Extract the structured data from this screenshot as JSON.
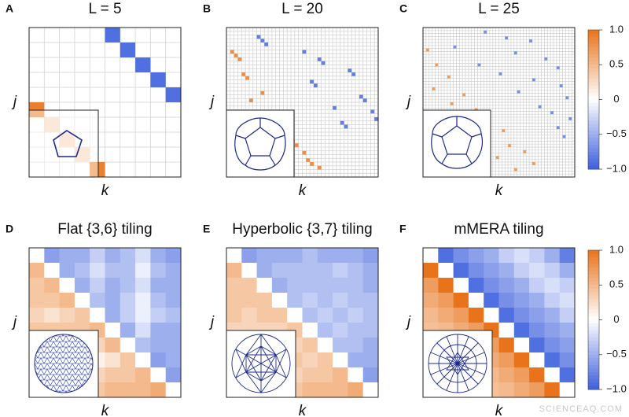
{
  "chart_data": [
    {
      "type": "heatmap",
      "panel_label": "A",
      "title": "L = 5",
      "xlabel": "k",
      "ylabel": "j",
      "grid_size": 10,
      "clim": [
        -1,
        1
      ],
      "colors": [
        "#3d5fdc",
        "#ffffff",
        "#e8731a"
      ],
      "cells": [
        [
          0,
          5,
          -0.9
        ],
        [
          1,
          6,
          -0.9
        ],
        [
          2,
          7,
          -0.9
        ],
        [
          3,
          8,
          -0.9
        ],
        [
          4,
          9,
          -0.9
        ],
        [
          5,
          0,
          0.9
        ],
        [
          6,
          1,
          0.3
        ],
        [
          7,
          2,
          0.3
        ],
        [
          8,
          3,
          0.3
        ],
        [
          9,
          4,
          0.9
        ]
      ]
    },
    {
      "type": "heatmap",
      "panel_label": "B",
      "title": "L = 20",
      "xlabel": "k",
      "ylabel": "j",
      "grid_size": 40,
      "clim": [
        -1,
        1
      ],
      "colors": [
        "#3d5fdc",
        "#ffffff",
        "#e8731a"
      ],
      "cells": [
        [
          2,
          8,
          -0.8
        ],
        [
          3,
          9,
          -0.8
        ],
        [
          4,
          10,
          -0.8
        ],
        [
          6,
          20,
          -0.8
        ],
        [
          8,
          24,
          -0.8
        ],
        [
          9,
          25,
          -0.8
        ],
        [
          11,
          32,
          -0.8
        ],
        [
          12,
          33,
          -0.8
        ],
        [
          14,
          22,
          -0.8
        ],
        [
          15,
          23,
          -0.8
        ],
        [
          18,
          35,
          -0.8
        ],
        [
          19,
          36,
          -0.8
        ],
        [
          21,
          28,
          -0.8
        ],
        [
          22,
          38,
          -0.8
        ],
        [
          24,
          39,
          -0.8
        ],
        [
          25,
          30,
          -0.8
        ],
        [
          26,
          31,
          -0.8
        ],
        [
          6,
          1,
          0.8
        ],
        [
          7,
          2,
          0.8
        ],
        [
          8,
          3,
          0.8
        ],
        [
          12,
          4,
          0.8
        ],
        [
          13,
          5,
          0.8
        ],
        [
          17,
          9,
          0.8
        ],
        [
          19,
          6,
          0.8
        ],
        [
          23,
          10,
          0.8
        ],
        [
          24,
          11,
          0.8
        ],
        [
          27,
          15,
          0.8
        ],
        [
          28,
          14,
          0.8
        ],
        [
          30,
          17,
          0.8
        ],
        [
          31,
          18,
          0.8
        ],
        [
          33,
          20,
          0.8
        ],
        [
          35,
          21,
          0.8
        ],
        [
          36,
          22,
          0.8
        ],
        [
          37,
          24,
          0.8
        ]
      ]
    },
    {
      "type": "heatmap",
      "panel_label": "C",
      "title": "L = 25",
      "xlabel": "k",
      "ylabel": "j",
      "grid_size": 50,
      "clim": [
        -1,
        1
      ],
      "colors": [
        "#3d5fdc",
        "#ffffff",
        "#e8731a"
      ],
      "cticks": [
        {
          "value": 1,
          "label": "1.0"
        },
        {
          "value": 0.5,
          "label": "0.5"
        },
        0,
        {
          "value": -0.5,
          "label": "−0.5"
        },
        {
          "value": -1,
          "label": "−1.0"
        }
      ],
      "cells": [
        [
          1,
          20,
          -0.7
        ],
        [
          3,
          27,
          -0.7
        ],
        [
          4,
          35,
          -0.7
        ],
        [
          6,
          10,
          -0.7
        ],
        [
          8,
          30,
          -0.7
        ],
        [
          10,
          40,
          -0.7
        ],
        [
          12,
          18,
          -0.7
        ],
        [
          13,
          44,
          -0.7
        ],
        [
          15,
          25,
          -0.7
        ],
        [
          17,
          36,
          -0.7
        ],
        [
          19,
          45,
          -0.7
        ],
        [
          21,
          31,
          -0.7
        ],
        [
          23,
          47,
          -0.7
        ],
        [
          26,
          38,
          -0.7
        ],
        [
          28,
          42,
          -0.7
        ],
        [
          30,
          48,
          -0.7
        ],
        [
          33,
          44,
          -0.7
        ],
        [
          36,
          46,
          -0.7
        ],
        [
          7,
          1,
          0.7
        ],
        [
          12,
          4,
          0.7
        ],
        [
          16,
          8,
          0.7
        ],
        [
          20,
          3,
          0.7
        ],
        [
          22,
          13,
          0.7
        ],
        [
          25,
          9,
          0.7
        ],
        [
          27,
          17,
          0.7
        ],
        [
          30,
          12,
          0.7
        ],
        [
          32,
          21,
          0.7
        ],
        [
          34,
          26,
          0.7
        ],
        [
          37,
          15,
          0.7
        ],
        [
          39,
          28,
          0.7
        ],
        [
          41,
          33,
          0.7
        ],
        [
          43,
          24,
          0.7
        ],
        [
          45,
          36,
          0.7
        ],
        [
          47,
          30,
          0.7
        ]
      ]
    },
    {
      "type": "heatmap",
      "panel_label": "D",
      "title": "Flat {3,6} tiling",
      "xlabel": "k",
      "ylabel": "j",
      "clim": [
        -1,
        1
      ],
      "colors": [
        "#3d5fdc",
        "#ffffff",
        "#e8731a"
      ],
      "values": [
        [
          0,
          -0.6,
          -0.5,
          -0.5,
          -0.3,
          -0.5,
          -0.4,
          -0.2,
          -0.5,
          -0.6
        ],
        [
          0.5,
          0,
          -0.5,
          -0.4,
          -0.2,
          -0.4,
          -0.4,
          -0.1,
          -0.4,
          -0.5
        ],
        [
          0.4,
          0.5,
          0,
          -0.5,
          -0.3,
          -0.5,
          -0.4,
          -0.2,
          -0.5,
          -0.5
        ],
        [
          0.4,
          0.4,
          0.5,
          0,
          -0.4,
          -0.5,
          -0.3,
          -0.1,
          -0.4,
          -0.5
        ],
        [
          0.3,
          0.2,
          0.3,
          0.4,
          0,
          -0.5,
          -0.3,
          -0.1,
          -0.3,
          -0.4
        ],
        [
          0.4,
          0.4,
          0.4,
          0.4,
          0.5,
          0,
          -0.5,
          -0.2,
          -0.5,
          -0.5
        ],
        [
          0.3,
          0.3,
          0.3,
          0.3,
          0.3,
          0.5,
          0,
          -0.4,
          -0.5,
          -0.5
        ],
        [
          0.2,
          0.1,
          0.2,
          0.1,
          0.1,
          0.2,
          0.4,
          0,
          -0.6,
          -0.5
        ],
        [
          0.4,
          0.4,
          0.4,
          0.4,
          0.3,
          0.4,
          0.4,
          0.5,
          0,
          -0.6
        ],
        [
          0.5,
          0.5,
          0.5,
          0.4,
          0.4,
          0.5,
          0.5,
          0.5,
          0.6,
          0
        ]
      ]
    },
    {
      "type": "heatmap",
      "panel_label": "E",
      "title": "Hyperbolic {3,7} tiling",
      "xlabel": "k",
      "ylabel": "j",
      "clim": [
        -1,
        1
      ],
      "colors": [
        "#3d5fdc",
        "#ffffff",
        "#e8731a"
      ],
      "values": [
        [
          0,
          -0.6,
          -0.5,
          -0.5,
          -0.5,
          -0.4,
          -0.5,
          -0.5,
          -0.5,
          -0.6
        ],
        [
          0.5,
          0,
          -0.5,
          -0.4,
          -0.4,
          -0.4,
          -0.4,
          -0.3,
          -0.4,
          -0.5
        ],
        [
          0.4,
          0.4,
          0,
          -0.5,
          -0.4,
          -0.4,
          -0.4,
          -0.4,
          -0.4,
          -0.5
        ],
        [
          0.4,
          0.4,
          0.4,
          0,
          -0.4,
          -0.3,
          -0.4,
          -0.3,
          -0.4,
          -0.4
        ],
        [
          0.4,
          0.3,
          0.4,
          0.4,
          0,
          -0.4,
          -0.3,
          -0.4,
          -0.3,
          -0.4
        ],
        [
          0.3,
          0.3,
          0.3,
          0.3,
          0.4,
          0,
          -0.4,
          -0.3,
          -0.4,
          -0.4
        ],
        [
          0.4,
          0.3,
          0.4,
          0.3,
          0.3,
          0.4,
          0,
          -0.4,
          -0.4,
          -0.5
        ],
        [
          0.4,
          0.3,
          0.3,
          0.3,
          0.4,
          0.3,
          0.4,
          0,
          -0.5,
          -0.5
        ],
        [
          0.4,
          0.4,
          0.4,
          0.4,
          0.3,
          0.4,
          0.4,
          0.5,
          0,
          -0.6
        ],
        [
          0.5,
          0.5,
          0.5,
          0.4,
          0.4,
          0.5,
          0.5,
          0.5,
          0.6,
          0
        ]
      ]
    },
    {
      "type": "heatmap",
      "panel_label": "F",
      "title": "mMERA tiling",
      "xlabel": "k",
      "ylabel": "j",
      "clim": [
        -1,
        1
      ],
      "colors": [
        "#3d5fdc",
        "#ffffff",
        "#e8731a"
      ],
      "cticks": [
        {
          "value": 1,
          "label": "1.0"
        },
        {
          "value": 0.5,
          "label": "0.5"
        },
        0,
        {
          "value": -0.5,
          "label": "−0.5"
        },
        {
          "value": -1,
          "label": "−1.0"
        }
      ],
      "values": [
        [
          0,
          -0.9,
          -0.7,
          -0.6,
          -0.5,
          -0.3,
          -0.2,
          -0.3,
          -0.5,
          -0.8
        ],
        [
          1,
          0,
          -0.9,
          -0.7,
          -0.6,
          -0.5,
          -0.3,
          -0.2,
          -0.3,
          -0.5
        ],
        [
          0.7,
          1,
          0,
          -0.9,
          -0.7,
          -0.6,
          -0.5,
          -0.3,
          -0.2,
          -0.3
        ],
        [
          0.6,
          0.7,
          1,
          0,
          -0.9,
          -0.7,
          -0.6,
          -0.5,
          -0.3,
          -0.2
        ],
        [
          0.5,
          0.6,
          0.7,
          1,
          0,
          -0.9,
          -0.7,
          -0.6,
          -0.5,
          -0.3
        ],
        [
          0.45,
          0.5,
          0.6,
          0.7,
          1,
          0,
          -0.9,
          -0.7,
          -0.6,
          -0.5
        ],
        [
          0.4,
          0.45,
          0.5,
          0.6,
          0.7,
          1,
          0,
          -0.9,
          -0.7,
          -0.6
        ],
        [
          0.35,
          0.4,
          0.45,
          0.5,
          0.6,
          0.7,
          1,
          0,
          -0.9,
          -0.7
        ],
        [
          0.3,
          0.35,
          0.4,
          0.45,
          0.5,
          0.6,
          0.7,
          1,
          0,
          -0.9
        ],
        [
          0.25,
          0.3,
          0.35,
          0.4,
          0.45,
          0.5,
          0.6,
          0.7,
          1,
          0
        ]
      ]
    }
  ],
  "watermark": "SCIENCEAQ.COM"
}
